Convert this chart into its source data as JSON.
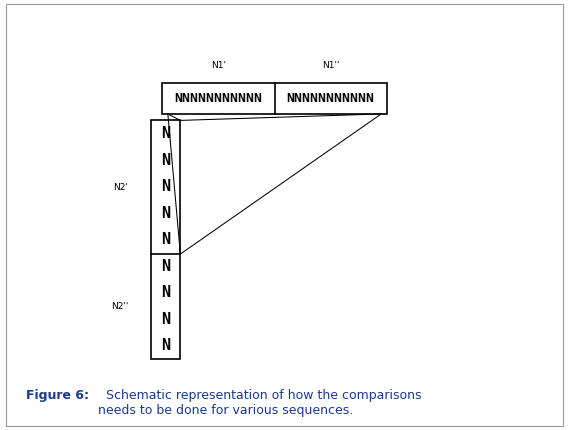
{
  "caption_bold": "Figure 6:",
  "caption_text": "  Schematic representation of how the comparisons\nneeds to be done for various sequences.",
  "background_color": "#ffffff",
  "fig_width": 5.69,
  "fig_height": 4.3,
  "dpi": 100,
  "N1_label": "N1'",
  "N1pp_label": "N1''",
  "horiz_text1": "NNNNNNNNNNN",
  "horiz_text2": "NNNNNNNNNNN",
  "vert_text": "NNNNNNNNN",
  "N2_label": "N2'",
  "N2pp_label": "N2''",
  "font_size_labels": 6.5,
  "font_size_box_text": 9.5,
  "font_size_vert_text": 11,
  "font_size_caption_bold": 9,
  "font_size_caption": 9,
  "caption_color": "#1a3a8a"
}
